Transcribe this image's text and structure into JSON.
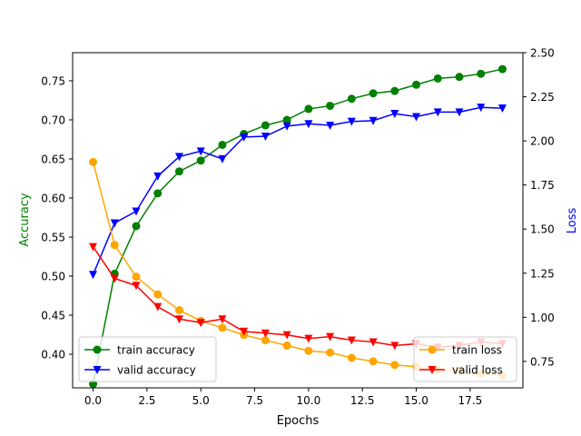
{
  "chart_data": {
    "type": "line",
    "xlabel": "Epochs",
    "ylabel_left": "Accuracy",
    "ylabel_right": "Loss",
    "xlim": [
      -0.95,
      19.95
    ],
    "ylim_left": [
      0.357,
      0.786
    ],
    "ylim_right": [
      0.6,
      2.5
    ],
    "x_ticks": [
      "0.0",
      "2.5",
      "5.0",
      "7.5",
      "10.0",
      "12.5",
      "15.0",
      "17.5"
    ],
    "y_left_ticks": [
      "0.40",
      "0.45",
      "0.50",
      "0.55",
      "0.60",
      "0.65",
      "0.70",
      "0.75"
    ],
    "y_right_ticks": [
      "0.75",
      "1.00",
      "1.25",
      "1.50",
      "1.75",
      "2.00",
      "2.25",
      "2.50"
    ],
    "x": [
      0,
      1,
      2,
      3,
      4,
      5,
      6,
      7,
      8,
      9,
      10,
      11,
      12,
      13,
      14,
      15,
      16,
      17,
      18,
      19
    ],
    "series": [
      {
        "name": "train accuracy",
        "axis": "left",
        "color": "#008000",
        "marker": "circle",
        "values": [
          0.362,
          0.503,
          0.564,
          0.606,
          0.634,
          0.648,
          0.668,
          0.682,
          0.693,
          0.7,
          0.714,
          0.718,
          0.727,
          0.734,
          0.737,
          0.745,
          0.753,
          0.755,
          0.759,
          0.765
        ]
      },
      {
        "name": "valid accuracy",
        "axis": "left",
        "color": "#0000ff",
        "marker": "triangle-down",
        "values": [
          0.502,
          0.568,
          0.583,
          0.628,
          0.653,
          0.66,
          0.65,
          0.678,
          0.679,
          0.692,
          0.695,
          0.693,
          0.698,
          0.699,
          0.708,
          0.704,
          0.71,
          0.71,
          0.716,
          0.715
        ]
      },
      {
        "name": "train loss",
        "axis": "right",
        "color": "#ffa500",
        "marker": "circle",
        "values": [
          1.88,
          1.41,
          1.23,
          1.13,
          1.04,
          0.98,
          0.94,
          0.9,
          0.87,
          0.84,
          0.81,
          0.8,
          0.77,
          0.75,
          0.73,
          0.72,
          0.7,
          0.7,
          0.68,
          0.67
        ]
      },
      {
        "name": "valid loss",
        "axis": "right",
        "color": "#ff0000",
        "marker": "triangle-down",
        "values": [
          1.4,
          1.22,
          1.18,
          1.06,
          0.99,
          0.97,
          0.99,
          0.92,
          0.91,
          0.9,
          0.88,
          0.89,
          0.87,
          0.86,
          0.84,
          0.85,
          0.83,
          0.84,
          0.86,
          0.85
        ]
      }
    ],
    "legends": [
      {
        "placement": "lower-left",
        "entries": [
          "train accuracy",
          "valid accuracy"
        ]
      },
      {
        "placement": "lower-right",
        "entries": [
          "train loss",
          "valid loss"
        ]
      }
    ],
    "grid": false
  }
}
